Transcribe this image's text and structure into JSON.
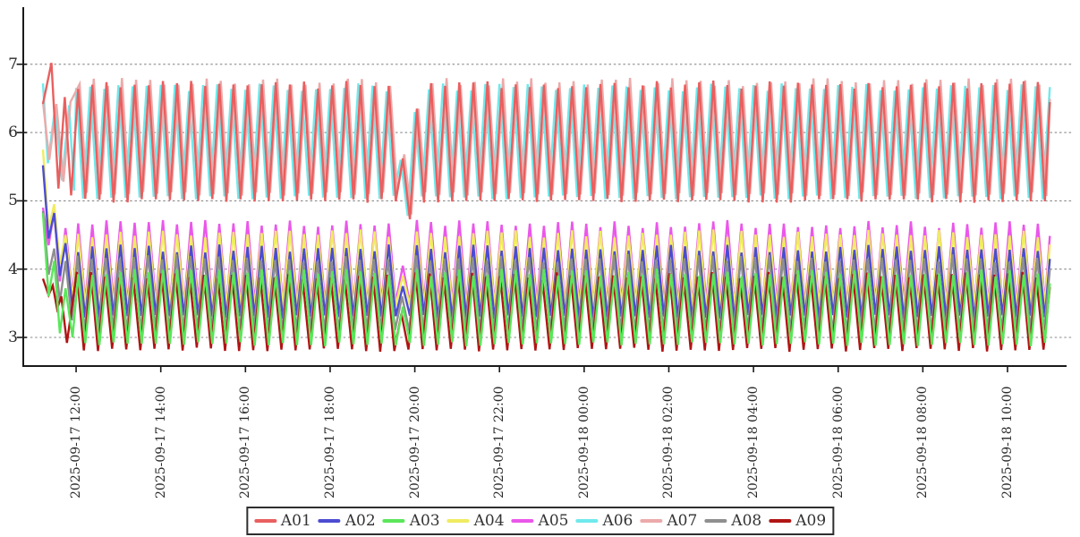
{
  "style": {
    "background": "#ffffff",
    "grid_color": "#8a8a8a",
    "axis_color": "#1a1a1a",
    "tick_label_color": "#2b2b2b",
    "legend_border_color": "#2e2e2e",
    "legend_text_color": "#333333"
  },
  "chart_data": {
    "type": "line",
    "title": "",
    "xlabel": "",
    "ylabel": "",
    "grid": true,
    "legend_position": "bottom-center",
    "x_axis": {
      "tick_labels": [
        "2025-09-17 12:00",
        "2025-09-17 14:00",
        "2025-09-17 16:00",
        "2025-09-17 18:00",
        "2025-09-17 20:00",
        "2025-09-17 22:00",
        "2025-09-18 00:00",
        "2025-09-18 02:00",
        "2025-09-18 04:00",
        "2025-09-18 06:00",
        "2025-09-18 08:00",
        "2025-09-18 10:00"
      ],
      "first_tick_minute": 47,
      "tick_interval_minutes": 120,
      "total_minutes": 1427,
      "start_time": "2025-09-17 11:13",
      "end_time": "2025-09-18 11:00"
    },
    "y_axis": {
      "tick_values": [
        3,
        4,
        5,
        6,
        7
      ],
      "view_min": 2.58,
      "view_max": 7.85
    },
    "sampling": {
      "step_minutes": 10,
      "period_minutes": 20,
      "wave": "triangular-zigzag",
      "peak_jitter": 0.06,
      "trough_jitter": 0.03
    },
    "series": [
      {
        "name": "A01",
        "color": "#e95f5f",
        "z": 3,
        "start_points": [
          [
            0,
            6.42
          ],
          [
            12,
            7.02
          ],
          [
            22,
            5.18
          ],
          [
            31,
            6.52
          ],
          [
            40,
            5.08
          ]
        ],
        "steady": {
          "min": 5.0,
          "max": 6.7,
          "start_minute": 50
        },
        "overrides": [
          [
            510,
            5.62
          ],
          [
            520,
            4.73
          ],
          [
            530,
            6.35
          ]
        ]
      },
      {
        "name": "A02",
        "color": "#4c4cd2",
        "z": 6,
        "start_points": [
          [
            0,
            5.52
          ],
          [
            8,
            4.45
          ],
          [
            16,
            4.82
          ],
          [
            24,
            3.9
          ],
          [
            32,
            4.38
          ],
          [
            42,
            3.42
          ]
        ],
        "steady": {
          "min": 3.3,
          "max": 4.3,
          "start_minute": 50
        },
        "overrides": [
          [
            510,
            3.75
          ],
          [
            530,
            4.35
          ]
        ]
      },
      {
        "name": "A03",
        "color": "#5be65b",
        "z": 9,
        "start_points": [
          [
            0,
            4.82
          ],
          [
            8,
            3.6
          ],
          [
            16,
            4.12
          ],
          [
            24,
            3.06
          ],
          [
            32,
            3.72
          ],
          [
            42,
            3.0
          ]
        ],
        "steady": {
          "min": 2.9,
          "max": 3.95,
          "start_minute": 50
        },
        "overrides": [
          [
            510,
            3.45
          ],
          [
            530,
            4.0
          ]
        ]
      },
      {
        "name": "A04",
        "color": "#f0ec60",
        "z": 5,
        "start_points": [
          [
            0,
            5.75
          ],
          [
            8,
            4.6
          ],
          [
            16,
            4.95
          ],
          [
            24,
            4.08
          ],
          [
            32,
            4.5
          ],
          [
            42,
            3.55
          ]
        ],
        "steady": {
          "min": 3.45,
          "max": 4.52,
          "start_minute": 50
        },
        "overrides": [
          [
            510,
            3.9
          ],
          [
            530,
            4.55
          ]
        ]
      },
      {
        "name": "A05",
        "color": "#ea57ea",
        "z": 4,
        "start_points": [
          [
            0,
            4.9
          ],
          [
            8,
            4.35
          ],
          [
            16,
            4.85
          ],
          [
            24,
            3.82
          ],
          [
            32,
            4.6
          ],
          [
            42,
            3.6
          ]
        ],
        "steady": {
          "min": 3.5,
          "max": 4.66,
          "start_minute": 50
        },
        "overrides": [
          [
            510,
            4.05
          ],
          [
            530,
            4.72
          ]
        ]
      },
      {
        "name": "A06",
        "color": "#6fe9ec",
        "z": 1,
        "start_points": [
          [
            0,
            6.72
          ],
          [
            7,
            5.55
          ],
          [
            17,
            6.35
          ],
          [
            27,
            5.3
          ],
          [
            37,
            6.4
          ],
          [
            44,
            5.15
          ]
        ],
        "steady": {
          "min": 5.05,
          "max": 6.66,
          "start_minute": 47
        },
        "overrides": [
          [
            507,
            5.6
          ],
          [
            517,
            4.78
          ],
          [
            527,
            6.3
          ]
        ]
      },
      {
        "name": "A07",
        "color": "#ecaaaa",
        "z": 2,
        "start_points": [
          [
            0,
            6.45
          ],
          [
            9,
            5.6
          ],
          [
            19,
            6.42
          ],
          [
            29,
            5.28
          ],
          [
            39,
            6.45
          ]
        ],
        "steady": {
          "min": 5.1,
          "max": 6.74,
          "start_minute": 52
        },
        "overrides": [
          [
            512,
            5.68
          ],
          [
            522,
            4.8
          ],
          [
            532,
            6.35
          ]
        ]
      },
      {
        "name": "A08",
        "color": "#8f8f8f",
        "z": 7,
        "start_points": [
          [
            0,
            4.85
          ],
          [
            8,
            3.92
          ],
          [
            16,
            4.3
          ],
          [
            24,
            3.52
          ],
          [
            32,
            4.12
          ],
          [
            41,
            3.25
          ]
        ],
        "steady": {
          "min": 3.1,
          "max": 4.16,
          "start_minute": 49
        },
        "overrides": [
          [
            509,
            3.6
          ],
          [
            529,
            4.2
          ]
        ]
      },
      {
        "name": "A09",
        "color": "#b11414",
        "z": 8,
        "start_points": [
          [
            0,
            3.86
          ],
          [
            8,
            3.62
          ],
          [
            14,
            3.76
          ],
          [
            20,
            3.42
          ],
          [
            26,
            3.6
          ],
          [
            34,
            2.92
          ]
        ],
        "steady": {
          "min": 2.82,
          "max": 3.9,
          "start_minute": 48
        },
        "overrides": [
          [
            508,
            3.35
          ],
          [
            528,
            3.95
          ]
        ]
      }
    ],
    "legend_entries": [
      "A01",
      "A02",
      "A03",
      "A04",
      "A05",
      "A06",
      "A07",
      "A08",
      "A09"
    ]
  }
}
